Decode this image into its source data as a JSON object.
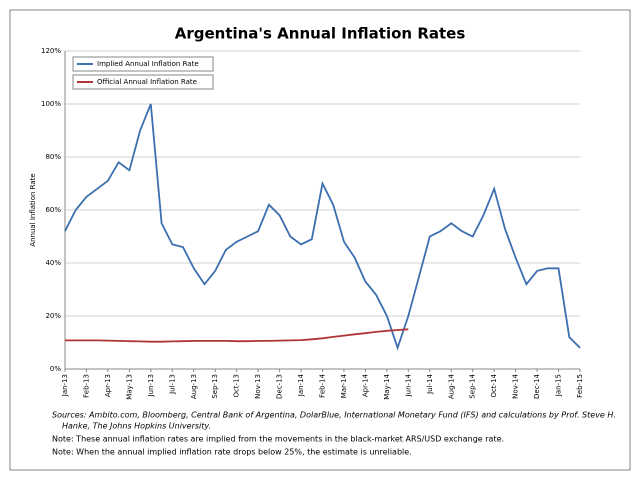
{
  "chart_data": {
    "type": "line",
    "title": "Argentina's Annual Inflation Rates",
    "ylabel": "Annual Inflation Rate",
    "categories": [
      "Jan-13",
      null,
      "Feb-13",
      null,
      "Apr-13",
      null,
      "May-13",
      null,
      "Jun-13",
      null,
      "Jul-13",
      null,
      "Aug-13",
      null,
      "Sep-13",
      null,
      "Oct-13",
      null,
      "Nov-13",
      null,
      "Dec-13",
      null,
      "Jan-14",
      null,
      "Feb-14",
      null,
      "Mar-14",
      null,
      "Apr-14",
      null,
      "May-14",
      null,
      "Jun-14",
      null,
      "Jul-14",
      null,
      "Aug-14",
      null,
      "Sep-14",
      null,
      "Oct-14",
      null,
      "Nov-14",
      null,
      "Dec-14",
      null,
      "Jan-15",
      null,
      "Feb-15"
    ],
    "series": [
      {
        "name": "Implied Annual Inflation Rate",
        "color": "#3c6fb0",
        "values": [
          52,
          60,
          65,
          68,
          71,
          78,
          75,
          90,
          100,
          55,
          47,
          46,
          38,
          32,
          37,
          45,
          48,
          50,
          52,
          62,
          58,
          50,
          47,
          49,
          70,
          62,
          48,
          42,
          33,
          28,
          20,
          8,
          20,
          35,
          50,
          52,
          55,
          52,
          50,
          58,
          68,
          53,
          42,
          32,
          37,
          38,
          38,
          12,
          8
        ]
      },
      {
        "name": "Official Annual Inflation Rate",
        "color": "#b03535",
        "values": [
          10.8,
          10.8,
          10.8,
          10.8,
          10.7,
          10.6,
          10.5,
          10.4,
          10.3,
          10.3,
          10.4,
          10.5,
          10.6,
          10.6,
          10.6,
          10.6,
          10.5,
          10.5,
          10.6,
          10.6,
          10.7,
          10.8,
          10.9,
          11.2,
          11.6,
          12.1,
          12.6,
          13.1,
          13.5,
          14,
          14.4,
          14.7,
          15,
          null,
          null,
          null,
          null,
          null,
          null,
          null,
          null,
          null,
          null,
          null,
          null,
          null,
          null,
          null,
          null
        ]
      }
    ],
    "ylim": [
      0,
      120
    ],
    "yticks": [
      {
        "value": 0,
        "label": "0%"
      },
      {
        "value": 20,
        "label": "20%"
      },
      {
        "value": 40,
        "label": "40%"
      },
      {
        "value": 60,
        "label": "60%"
      },
      {
        "value": 80,
        "label": "80%"
      },
      {
        "value": 100,
        "label": "100%"
      },
      {
        "value": 120,
        "label": "120%"
      }
    ],
    "grid": true,
    "legend": "upper left",
    "notes": [
      "Sources: Ambito.com, Bloomberg, Central Bank of Argentina, DolarBlue, International Monetary Fund (IFS)  and calculations by Prof. Steve H.",
      "Hanke, The Johns Hopkins University.",
      "Note: These annual inflation rates are implied from the movements in the black-market ARS/USD exchange rate.",
      "Note: When the annual implied inflation rate drops below 25%, the estimate is unreliable."
    ]
  }
}
